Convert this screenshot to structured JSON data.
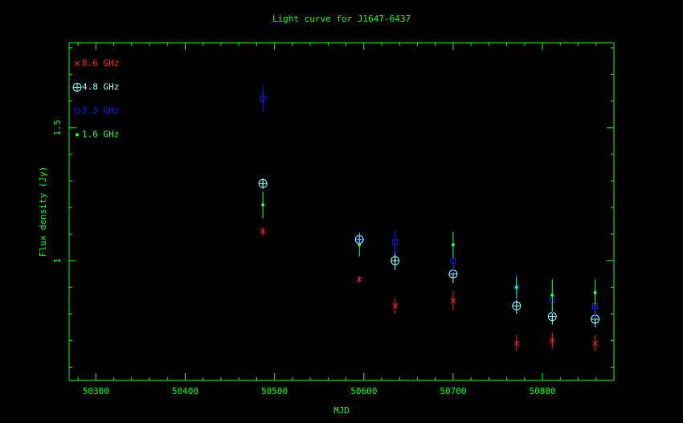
{
  "chart_data": {
    "type": "scatter",
    "title": "Light curve for J1647-6437",
    "xlabel": "MJD",
    "ylabel": "Flux density (Jy)",
    "xlim": [
      50270,
      50880
    ],
    "ylim": [
      0.55,
      1.82
    ],
    "x_ticks": [
      50300,
      50400,
      50500,
      50600,
      50700,
      50800
    ],
    "y_ticks": [
      1,
      1.5
    ],
    "grid": false,
    "legend_position": "top-left",
    "colors": {
      "background": "#000000",
      "axes": "#00ff00",
      "text": "#00ff00",
      "title": "#00ff00"
    },
    "series": [
      {
        "name": "8.6 GHz",
        "marker": "x",
        "color": "#ff2020",
        "points": [
          {
            "x": 50487,
            "y": 1.11,
            "err": 0.015
          },
          {
            "x": 50595,
            "y": 0.93,
            "err": 0.012
          },
          {
            "x": 50635,
            "y": 0.83,
            "err": 0.03
          },
          {
            "x": 50700,
            "y": 0.85,
            "err": 0.035
          },
          {
            "x": 50771,
            "y": 0.69,
            "err": 0.03
          },
          {
            "x": 50811,
            "y": 0.7,
            "err": 0.03
          },
          {
            "x": 50859,
            "y": 0.69,
            "err": 0.03
          }
        ]
      },
      {
        "name": "4.8 GHz",
        "marker": "circle-plus",
        "color": "#80ffff",
        "points": [
          {
            "x": 50487,
            "y": 1.29,
            "err": 0.02
          },
          {
            "x": 50595,
            "y": 1.08,
            "err": 0.02
          },
          {
            "x": 50635,
            "y": 1.0,
            "err": 0.035
          },
          {
            "x": 50700,
            "y": 0.95,
            "err": 0.035
          },
          {
            "x": 50771,
            "y": 0.83,
            "err": 0.03
          },
          {
            "x": 50811,
            "y": 0.79,
            "err": 0.03
          },
          {
            "x": 50859,
            "y": 0.78,
            "err": 0.03
          }
        ]
      },
      {
        "name": "2.3 GHz",
        "marker": "square",
        "color": "#1a1aff",
        "points": [
          {
            "x": 50487,
            "y": 1.61,
            "err": 0.05
          },
          {
            "x": 50595,
            "y": 1.08,
            "err": 0.03
          },
          {
            "x": 50635,
            "y": 1.07,
            "err": 0.045
          },
          {
            "x": 50700,
            "y": 1.0,
            "err": 0.05
          },
          {
            "x": 50771,
            "y": 0.9,
            "err": 0.05
          },
          {
            "x": 50811,
            "y": 0.85,
            "err": 0.05
          },
          {
            "x": 50859,
            "y": 0.83,
            "err": 0.05
          }
        ]
      },
      {
        "name": "1.6 GHz",
        "marker": "dot",
        "color": "#20ff20",
        "points": [
          {
            "x": 50487,
            "y": 1.21,
            "err": 0.05
          },
          {
            "x": 50595,
            "y": 1.06,
            "err": 0.045
          },
          {
            "x": 50700,
            "y": 1.06,
            "err": 0.05
          },
          {
            "x": 50771,
            "y": 0.9,
            "err": 0.04
          },
          {
            "x": 50811,
            "y": 0.87,
            "err": 0.06
          },
          {
            "x": 50859,
            "y": 0.88,
            "err": 0.05
          }
        ]
      }
    ]
  }
}
